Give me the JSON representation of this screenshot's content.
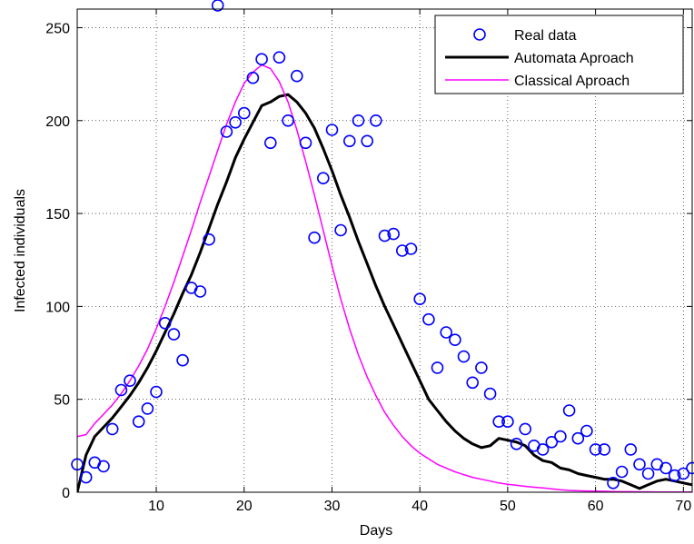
{
  "chart_data": {
    "type": "line",
    "title": "",
    "xlabel": "Days",
    "ylabel": "Infected individuals",
    "xlim": [
      1,
      71
    ],
    "ylim": [
      0,
      260
    ],
    "xticks": [
      10,
      20,
      30,
      40,
      50,
      60,
      70
    ],
    "yticks": [
      0,
      50,
      100,
      150,
      200,
      250
    ],
    "grid": true,
    "legend": "top-right",
    "series": [
      {
        "name": "Real data",
        "kind": "markers",
        "marker": "circle",
        "color": "#0000ff",
        "x": [
          1,
          2,
          3,
          4,
          5,
          6,
          7,
          8,
          9,
          10,
          11,
          12,
          13,
          14,
          15,
          16,
          17,
          18,
          19,
          20,
          21,
          22,
          23,
          24,
          25,
          26,
          27,
          28,
          29,
          30,
          31,
          32,
          33,
          34,
          35,
          36,
          37,
          38,
          39,
          40,
          41,
          42,
          43,
          44,
          45,
          46,
          47,
          48,
          49,
          50,
          51,
          52,
          53,
          54,
          55,
          56,
          57,
          58,
          59,
          60,
          61,
          62,
          63,
          64,
          65,
          66,
          67,
          68,
          69,
          70,
          71
        ],
        "y": [
          15,
          8,
          16,
          14,
          34,
          55,
          60,
          38,
          45,
          54,
          91,
          85,
          71,
          110,
          108,
          136,
          262,
          194,
          199,
          204,
          223,
          233,
          188,
          234,
          200,
          224,
          188,
          137,
          169,
          195,
          141,
          189,
          200,
          189,
          200,
          138,
          139,
          130,
          131,
          104,
          93,
          67,
          86,
          82,
          73,
          59,
          67,
          53,
          38,
          38,
          26,
          34,
          25,
          23,
          27,
          30,
          44,
          29,
          33,
          23,
          23,
          5,
          11,
          23,
          15,
          10,
          15,
          13,
          9,
          10,
          13
        ]
      },
      {
        "name": "Automata Aproach",
        "kind": "line",
        "color": "#000000",
        "width": 3,
        "x": [
          1,
          2,
          3,
          4,
          5,
          6,
          7,
          8,
          9,
          10,
          11,
          12,
          13,
          14,
          15,
          16,
          17,
          18,
          19,
          20,
          21,
          22,
          23,
          24,
          25,
          26,
          27,
          28,
          29,
          30,
          31,
          32,
          33,
          34,
          35,
          36,
          37,
          38,
          39,
          40,
          41,
          42,
          43,
          44,
          45,
          46,
          47,
          48,
          49,
          50,
          51,
          52,
          53,
          54,
          55,
          56,
          57,
          58,
          59,
          60,
          61,
          62,
          63,
          64,
          65,
          66,
          67,
          68,
          69,
          70,
          71
        ],
        "y": [
          0,
          20,
          30,
          35,
          40,
          46,
          52,
          59,
          67,
          76,
          86,
          96,
          107,
          117,
          129,
          142,
          155,
          167,
          180,
          190,
          199,
          208,
          210,
          213,
          214,
          210,
          204,
          196,
          185,
          173,
          160,
          148,
          135,
          123,
          111,
          100,
          90,
          80,
          70,
          60,
          50,
          44,
          38,
          33,
          29,
          26,
          24,
          25,
          29,
          28,
          27,
          25,
          20,
          17,
          16,
          13,
          12,
          10,
          9,
          8,
          7,
          7,
          6,
          4,
          2,
          4,
          6,
          7,
          6,
          5,
          4
        ]
      },
      {
        "name": "Classical Aproach",
        "kind": "line",
        "color": "#ff00ff",
        "width": 1.5,
        "x": [
          1,
          2,
          3,
          4,
          5,
          6,
          7,
          8,
          9,
          10,
          11,
          12,
          13,
          14,
          15,
          16,
          17,
          18,
          19,
          20,
          21,
          22,
          23,
          24,
          25,
          26,
          27,
          28,
          29,
          30,
          31,
          32,
          33,
          34,
          35,
          36,
          37,
          38,
          39,
          40,
          41,
          42,
          43,
          44,
          45,
          46,
          47,
          48,
          49,
          50,
          51,
          52,
          53,
          54,
          55,
          56,
          57,
          58,
          59,
          60,
          61,
          62,
          63,
          64,
          65,
          66,
          67,
          68,
          69,
          70,
          71
        ],
        "y": [
          30,
          31,
          37,
          42,
          47,
          53,
          60,
          68,
          77,
          88,
          100,
          113,
          127,
          141,
          156,
          170,
          184,
          198,
          210,
          220,
          226,
          230,
          228,
          221,
          210,
          195,
          178,
          160,
          141,
          122,
          104,
          88,
          74,
          62,
          52,
          43,
          36,
          30,
          25,
          21,
          18,
          15,
          13,
          11,
          9.5,
          8,
          7,
          6,
          5,
          4.3,
          3.7,
          3.2,
          2.7,
          2.3,
          1.8,
          1.3,
          1,
          0.8,
          0.7,
          0.6,
          0.5,
          0.4,
          0.3,
          0.3,
          0.2,
          0.2,
          0.1,
          0.1,
          0.1,
          0.1,
          0.1
        ]
      }
    ]
  }
}
